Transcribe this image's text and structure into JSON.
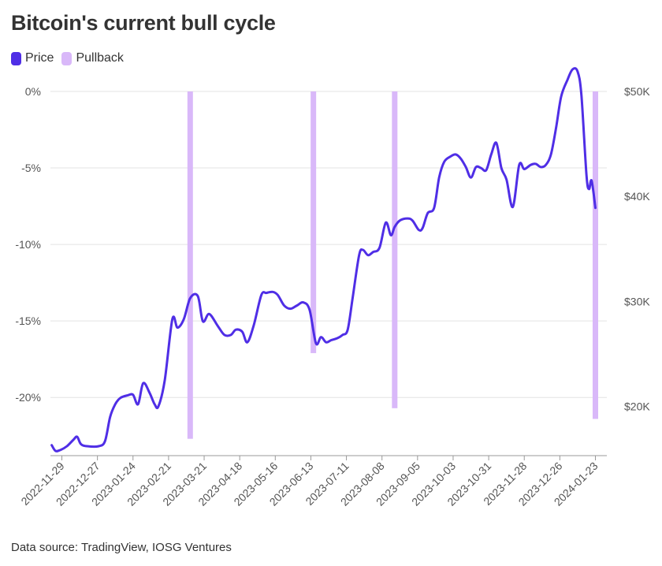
{
  "title": "Bitcoin's current bull cycle",
  "source": "Data source: TradingView, IOSG Ventures",
  "colors": {
    "price": "#4f2ee6",
    "pullback": "#d9b8f9",
    "grid": "#e3e3e3",
    "axis": "#999999"
  },
  "chart_data": {
    "type": "line",
    "legend": [
      {
        "name": "Price",
        "color": "#4f2ee6"
      },
      {
        "name": "Pullback",
        "color": "#d9b8f9"
      }
    ],
    "legend_position": "top-left",
    "grid": true,
    "x_tick_labels": [
      "2022-11-29",
      "2022-12-27",
      "2023-01-24",
      "2023-02-21",
      "2023-03-21",
      "2023-04-18",
      "2023-05-16",
      "2023-06-13",
      "2023-07-11",
      "2023-08-08",
      "2023-09-05",
      "2023-10-03",
      "2023-10-31",
      "2023-11-28",
      "2023-12-26",
      "2024-01-23"
    ],
    "x_range": [
      "2022-11-20",
      "2024-02-01"
    ],
    "left_axis": {
      "ticks": [
        "0%",
        "-5%",
        "-10%",
        "-15%",
        "-20%"
      ],
      "values": [
        0,
        -5,
        -10,
        -15,
        -20
      ],
      "range": [
        -23.8,
        0
      ]
    },
    "right_axis": {
      "ticks": [
        "$50K",
        "$40K",
        "$30K",
        "$20K"
      ],
      "values": [
        50000,
        40000,
        30000,
        20000
      ],
      "range": [
        15300,
        50000
      ]
    },
    "pullbacks": [
      {
        "date": "2023-03-10",
        "drawdown_pct": -22.7
      },
      {
        "date": "2023-06-15",
        "drawdown_pct": -17.1
      },
      {
        "date": "2023-08-18",
        "drawdown_pct": -20.7
      },
      {
        "date": "2024-01-23",
        "drawdown_pct": -21.4
      }
    ],
    "series": [
      {
        "name": "Price",
        "axis": "right",
        "points": [
          [
            "2022-11-21",
            16300
          ],
          [
            "2022-11-24",
            15750
          ],
          [
            "2022-11-28",
            15850
          ],
          [
            "2022-12-03",
            16200
          ],
          [
            "2022-12-08",
            16800
          ],
          [
            "2022-12-11",
            17100
          ],
          [
            "2022-12-14",
            16400
          ],
          [
            "2022-12-19",
            16200
          ],
          [
            "2022-12-28",
            16200
          ],
          [
            "2023-01-02",
            16700
          ],
          [
            "2023-01-06",
            19000
          ],
          [
            "2023-01-10",
            20200
          ],
          [
            "2023-01-14",
            20800
          ],
          [
            "2023-01-20",
            21050
          ],
          [
            "2023-01-24",
            21100
          ],
          [
            "2023-01-28",
            20200
          ],
          [
            "2023-02-01",
            22200
          ],
          [
            "2023-02-06",
            21300
          ],
          [
            "2023-02-10",
            20200
          ],
          [
            "2023-02-13",
            20000
          ],
          [
            "2023-02-18",
            22500
          ],
          [
            "2023-02-24",
            28300
          ],
          [
            "2023-02-28",
            27500
          ],
          [
            "2023-03-05",
            28300
          ],
          [
            "2023-03-10",
            30300
          ],
          [
            "2023-03-16",
            30500
          ],
          [
            "2023-03-20",
            28100
          ],
          [
            "2023-03-25",
            28800
          ],
          [
            "2023-04-01",
            27600
          ],
          [
            "2023-04-06",
            26800
          ],
          [
            "2023-04-11",
            26800
          ],
          [
            "2023-04-15",
            27300
          ],
          [
            "2023-04-20",
            27100
          ],
          [
            "2023-04-24",
            26100
          ],
          [
            "2023-04-29",
            27700
          ],
          [
            "2023-05-05",
            30600
          ],
          [
            "2023-05-09",
            30800
          ],
          [
            "2023-05-14",
            30900
          ],
          [
            "2023-05-18",
            30600
          ],
          [
            "2023-05-23",
            29600
          ],
          [
            "2023-05-28",
            29300
          ],
          [
            "2023-06-02",
            29600
          ],
          [
            "2023-06-07",
            29900
          ],
          [
            "2023-06-12",
            29200
          ],
          [
            "2023-06-17",
            26000
          ],
          [
            "2023-06-21",
            26600
          ],
          [
            "2023-06-25",
            26100
          ],
          [
            "2023-06-29",
            26300
          ],
          [
            "2023-07-04",
            26500
          ],
          [
            "2023-07-08",
            26800
          ],
          [
            "2023-07-12",
            27300
          ],
          [
            "2023-07-16",
            30400
          ],
          [
            "2023-07-21",
            34400
          ],
          [
            "2023-07-24",
            34900
          ],
          [
            "2023-07-28",
            34400
          ],
          [
            "2023-08-01",
            34700
          ],
          [
            "2023-08-06",
            35100
          ],
          [
            "2023-08-11",
            37500
          ],
          [
            "2023-08-15",
            36300
          ],
          [
            "2023-08-18",
            37100
          ],
          [
            "2023-08-22",
            37700
          ],
          [
            "2023-08-28",
            37900
          ],
          [
            "2023-09-01",
            37700
          ],
          [
            "2023-09-06",
            36800
          ],
          [
            "2023-09-09",
            37000
          ],
          [
            "2023-09-13",
            38400
          ],
          [
            "2023-09-18",
            38900
          ],
          [
            "2023-09-22",
            41800
          ],
          [
            "2023-09-26",
            43300
          ],
          [
            "2023-10-01",
            43800
          ],
          [
            "2023-10-05",
            44000
          ],
          [
            "2023-10-09",
            43600
          ],
          [
            "2023-10-13",
            42800
          ],
          [
            "2023-10-17",
            41800
          ],
          [
            "2023-10-21",
            42800
          ],
          [
            "2023-10-25",
            42700
          ],
          [
            "2023-10-29",
            42500
          ],
          [
            "2023-11-02",
            44000
          ],
          [
            "2023-11-06",
            45100
          ],
          [
            "2023-11-10",
            42700
          ],
          [
            "2023-11-14",
            41600
          ],
          [
            "2023-11-19",
            39000
          ],
          [
            "2023-11-24",
            43000
          ],
          [
            "2023-11-28",
            42600
          ],
          [
            "2023-12-03",
            43000
          ],
          [
            "2023-12-07",
            43100
          ],
          [
            "2023-12-11",
            42800
          ],
          [
            "2023-12-15",
            43000
          ],
          [
            "2023-12-19",
            44000
          ],
          [
            "2023-12-23",
            46500
          ],
          [
            "2023-12-27",
            49500
          ],
          [
            "2024-01-01",
            51100
          ],
          [
            "2024-01-05",
            52100
          ],
          [
            "2024-01-09",
            51900
          ],
          [
            "2024-01-12",
            49600
          ],
          [
            "2024-01-16",
            42000
          ],
          [
            "2024-01-18",
            40700
          ],
          [
            "2024-01-20",
            41500
          ],
          [
            "2024-01-23",
            38900
          ]
        ]
      }
    ]
  }
}
